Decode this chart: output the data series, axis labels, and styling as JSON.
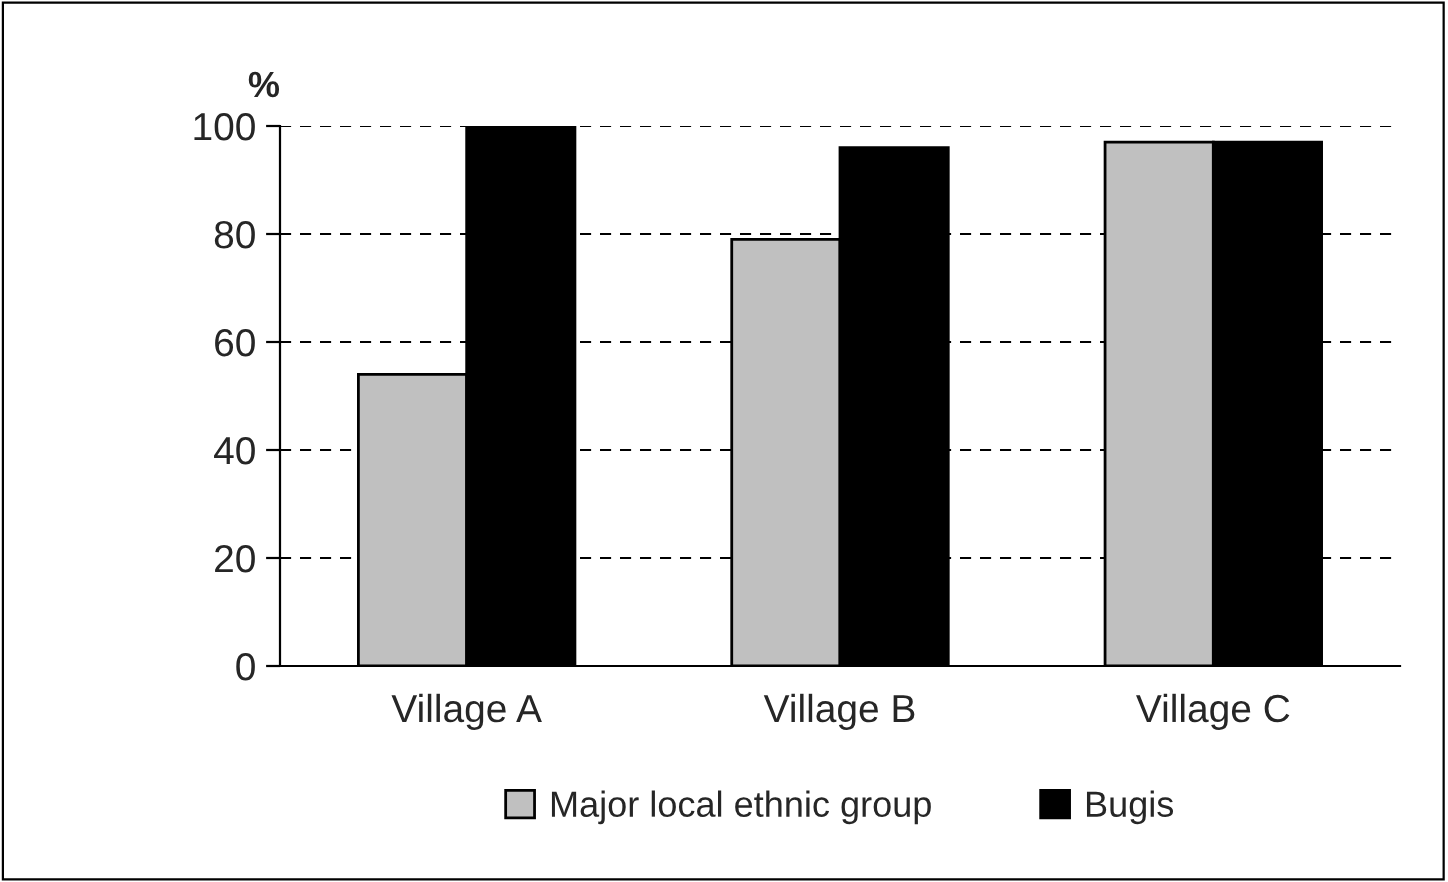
{
  "chart_data": {
    "type": "bar",
    "ylabel": "%",
    "categories": [
      "Village A",
      "Village B",
      "Village C"
    ],
    "series": [
      {
        "name": "Major local ethnic group",
        "color": "#c0c0c0",
        "values": [
          54,
          79,
          97
        ]
      },
      {
        "name": "Bugis",
        "color": "#000000",
        "values": [
          100,
          96,
          97
        ]
      }
    ],
    "ylim": [
      0,
      100
    ],
    "yticks": [
      0,
      20,
      40,
      60,
      80,
      100
    ],
    "grid": "y",
    "legend": "bottom"
  }
}
